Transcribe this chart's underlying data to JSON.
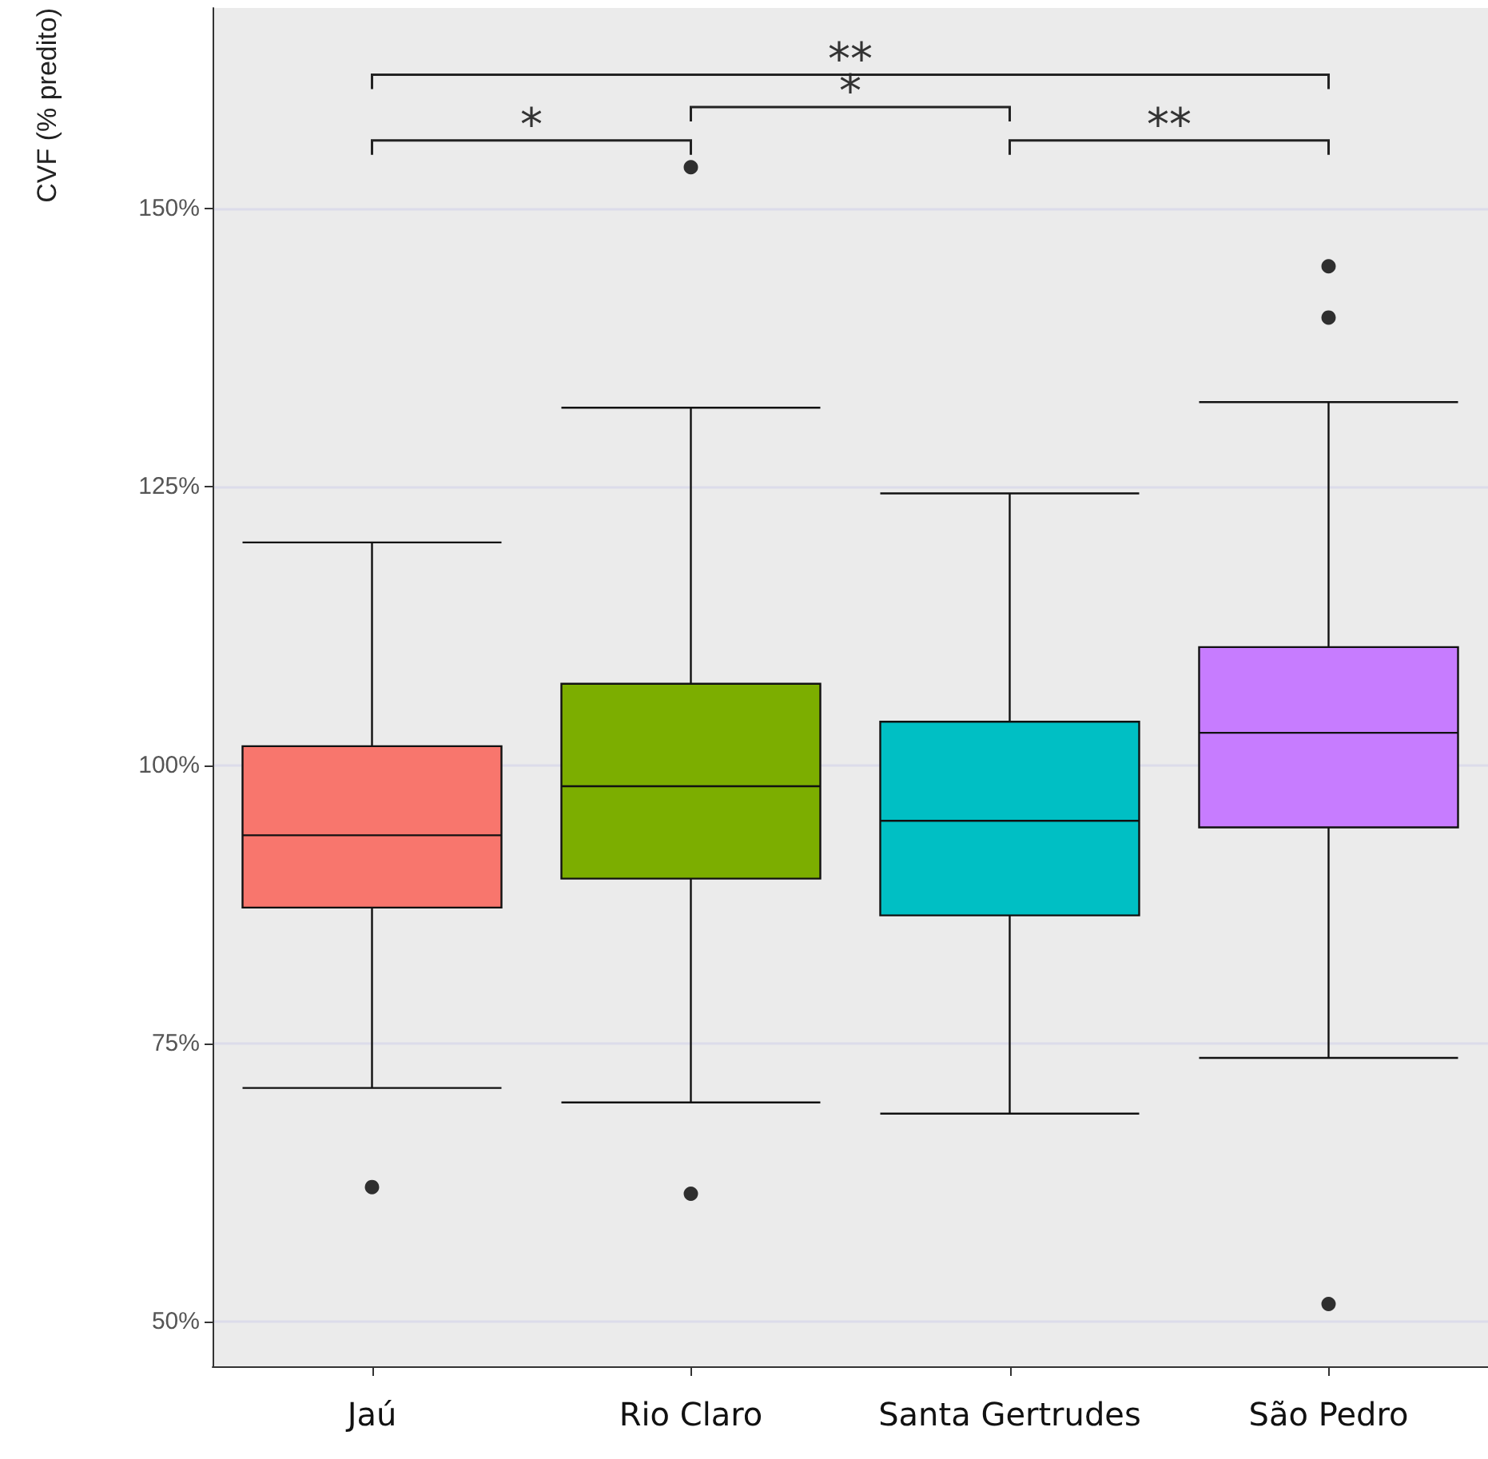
{
  "chart_data": {
    "type": "box",
    "ylabel": "CVF (% predito)",
    "categories": [
      "Jaú",
      "Rio Claro",
      "Santa Gertrudes",
      "São Pedro"
    ],
    "colors": [
      "#f8766d",
      "#7cae00",
      "#00bfc4",
      "#c77cff"
    ],
    "boxes": [
      {
        "low": 71,
        "q1": 87.2,
        "median": 93.7,
        "q3": 101.7,
        "high": 120,
        "outliers": [
          62.1
        ]
      },
      {
        "low": 69.7,
        "q1": 89.8,
        "median": 98.1,
        "q3": 107.3,
        "high": 132.1,
        "outliers": [
          153.7,
          61.5
        ]
      },
      {
        "low": 68.7,
        "q1": 86.5,
        "median": 95,
        "q3": 103.9,
        "high": 124.4
      },
      {
        "low": 73.7,
        "q1": 94.4,
        "median": 102.9,
        "q3": 110.6,
        "high": 132.6,
        "outliers": [
          144.8,
          140.2,
          51.6
        ]
      }
    ],
    "ylim": [
      46,
      168
    ],
    "yticks": [
      {
        "value": 50,
        "label": "50%"
      },
      {
        "value": 75,
        "label": "75%"
      },
      {
        "value": 100,
        "label": "100%"
      },
      {
        "value": 125,
        "label": "125%"
      },
      {
        "value": 150,
        "label": "150%"
      }
    ],
    "grid": "y",
    "annotations": [
      "*",
      "*",
      "**",
      "**"
    ]
  }
}
